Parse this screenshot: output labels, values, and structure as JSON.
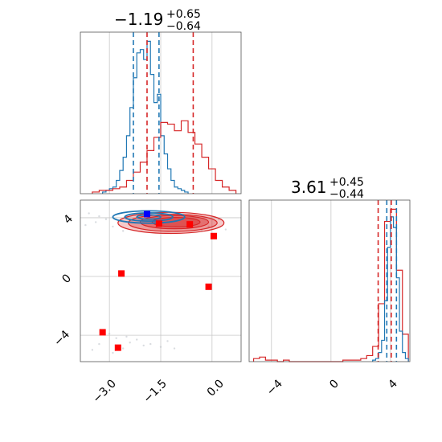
{
  "chart_data": {
    "type": "corner",
    "colors": {
      "red": "#d62728",
      "blue": "#1f77b4",
      "grid": "#c8c8c8",
      "red_marker": "#ff0000",
      "blue_marker": "#0000ff"
    },
    "panels": [
      {
        "id": "hist_p1",
        "type": "histogram",
        "title": {
          "main": "−1.19",
          "sup": "+0.65",
          "sub": "−0.64"
        },
        "xlim": [
          -3.85,
          0.85
        ],
        "grid_x": [
          -3.0,
          -1.5,
          0.0
        ],
        "series": [
          {
            "name": "",
            "color": "#1f77b4",
            "bin_edges": [
              -3.2,
              -3.1,
              -3.0,
              -2.9,
              -2.8,
              -2.7,
              -2.6,
              -2.5,
              -2.4,
              -2.3,
              -2.2,
              -2.1,
              -2.0,
              -1.9,
              -1.8,
              -1.7,
              -1.6,
              -1.5,
              -1.4,
              -1.3,
              -1.2,
              -1.1,
              -1.0,
              -0.9,
              -0.8,
              -0.7
            ],
            "counts": [
              1,
              2,
              3,
              4,
              8,
              14,
              22,
              35,
              52,
              70,
              85,
              87,
              81,
              92,
              72,
              55,
              60,
              35,
              24,
              15,
              8,
              4,
              3,
              2,
              1
            ]
          },
          {
            "name": "",
            "color": "#d62728",
            "bin_edges": [
              -3.5,
              -3.3,
              -3.1,
              -2.9,
              -2.7,
              -2.5,
              -2.3,
              -2.1,
              -1.9,
              -1.7,
              -1.5,
              -1.3,
              -1.1,
              -0.9,
              -0.7,
              -0.5,
              -0.3,
              -0.1,
              0.1,
              0.3,
              0.5,
              0.7
            ],
            "counts": [
              1,
              2,
              2,
              3,
              4,
              8,
              13,
              19,
              26,
              34,
              43,
              42,
              38,
              44,
              37,
              30,
              22,
              15,
              8,
              4,
              2
            ]
          }
        ],
        "vlines": [
          {
            "x": -2.3,
            "color": "#1f77b4"
          },
          {
            "x": -1.9,
            "color": "#d62728"
          },
          {
            "x": -1.55,
            "color": "#1f77b4"
          },
          {
            "x": -0.55,
            "color": "#d62728"
          }
        ]
      },
      {
        "id": "hist_p2",
        "type": "histogram",
        "title": {
          "main": "3.61",
          "sup": "+0.45",
          "sub": "−0.44"
        },
        "xlim": [
          -5.5,
          5.3
        ],
        "grid_x": [
          -4,
          0,
          4
        ],
        "series": [
          {
            "name": "",
            "color": "#d62728",
            "bin_edges": [
              -5.2,
              -4.8,
              -4.4,
              -4.0,
              -3.6,
              -3.2,
              -2.8,
              -2.4,
              -2.0,
              -1.6,
              -1.2,
              -0.8,
              -0.4,
              0.0,
              0.4,
              0.8,
              1.2,
              1.6,
              2.0,
              2.4,
              2.8,
              3.2,
              3.6,
              4.0,
              4.4,
              4.8,
              5.2
            ],
            "counts": [
              2,
              3,
              1,
              1,
              0,
              1,
              0,
              0,
              0,
              0,
              0,
              0,
              0,
              0,
              0,
              1,
              1,
              1,
              2,
              4,
              10,
              38,
              92,
              100,
              60,
              18
            ]
          },
          {
            "name": "",
            "color": "#1f77b4",
            "bin_edges": [
              2.8,
              3.0,
              3.2,
              3.4,
              3.6,
              3.8,
              4.0,
              4.2,
              4.4,
              4.6,
              4.8,
              5.0,
              5.2
            ],
            "counts": [
              1,
              2,
              6,
              14,
              40,
              75,
              95,
              88,
              55,
              20,
              6,
              2
            ]
          }
        ],
        "vlines": [
          {
            "x": 3.17,
            "color": "#d62728"
          },
          {
            "x": 3.75,
            "color": "#1f77b4"
          },
          {
            "x": 4.05,
            "color": "#d62728"
          },
          {
            "x": 4.4,
            "color": "#1f77b4"
          }
        ]
      },
      {
        "id": "scatter_p1_p2",
        "type": "2d-density",
        "xlim": [
          -3.85,
          0.85
        ],
        "ylim": [
          -5.8,
          5.2
        ],
        "grid_x": [
          -3.0,
          -1.5,
          0.0
        ],
        "grid_y": [
          -4,
          0,
          4
        ],
        "red_contours": [
          {
            "cx": -1.2,
            "cy": 3.65,
            "rx": 1.55,
            "ry": 0.72,
            "opacity": 0.45
          },
          {
            "cx": -1.15,
            "cy": 3.65,
            "rx": 1.3,
            "ry": 0.58,
            "opacity": 0.55
          },
          {
            "cx": -1.1,
            "cy": 3.7,
            "rx": 1.0,
            "ry": 0.45,
            "opacity": 0.65
          },
          {
            "cx": -1.05,
            "cy": 3.7,
            "rx": 0.7,
            "ry": 0.32,
            "opacity": 0.75
          }
        ],
        "blue_contours": [
          {
            "cx": -1.85,
            "cy": 4.05,
            "rx": 1.05,
            "ry": 0.42
          },
          {
            "cx": -1.85,
            "cy": 4.05,
            "rx": 0.7,
            "ry": 0.28
          },
          {
            "cx": -1.85,
            "cy": 4.05,
            "rx": 0.35,
            "ry": 0.15
          }
        ],
        "red_markers": [
          {
            "x": -1.55,
            "y": 3.6
          },
          {
            "x": -0.65,
            "y": 3.55
          },
          {
            "x": 0.05,
            "y": 2.75
          },
          {
            "x": -2.65,
            "y": 0.2
          },
          {
            "x": -0.1,
            "y": -0.7
          },
          {
            "x": -3.2,
            "y": -3.8
          },
          {
            "x": -2.75,
            "y": -4.85
          }
        ],
        "blue_markers": [
          {
            "x": -1.9,
            "y": 4.25
          }
        ],
        "background_points": [
          [
            -3.6,
            4.3
          ],
          [
            -3.3,
            4.1
          ],
          [
            -3.1,
            3.9
          ],
          [
            -2.9,
            3.4
          ],
          [
            -3.4,
            3.7
          ],
          [
            -2.6,
            3.1
          ],
          [
            -0.3,
            3.1
          ],
          [
            -0.1,
            3.4
          ],
          [
            0.2,
            3.9
          ],
          [
            -3.0,
            -3.9
          ],
          [
            -2.8,
            -4.2
          ],
          [
            -2.4,
            -4.5
          ],
          [
            -2.2,
            -4.3
          ],
          [
            -2.0,
            -4.7
          ],
          [
            -1.8,
            -4.6
          ],
          [
            -1.5,
            -4.8
          ],
          [
            -1.3,
            -4.4
          ],
          [
            -2.6,
            -4.9
          ],
          [
            -3.3,
            -4.6
          ],
          [
            -3.5,
            -5.0
          ],
          [
            -2.9,
            -5.2
          ],
          [
            -1.1,
            -4.9
          ],
          [
            -2.5,
            -4.1
          ],
          [
            -3.7,
            3.5
          ],
          [
            0.4,
            3.2
          ]
        ]
      }
    ],
    "axes": {
      "bottom_left": {
        "ticks": [
          "−3.0",
          "−1.5",
          "0.0"
        ]
      },
      "left_side": {
        "ticks": [
          "4",
          "0",
          "−4"
        ]
      },
      "bottom_right": {
        "ticks": [
          "−4",
          "0",
          "4"
        ]
      }
    }
  }
}
